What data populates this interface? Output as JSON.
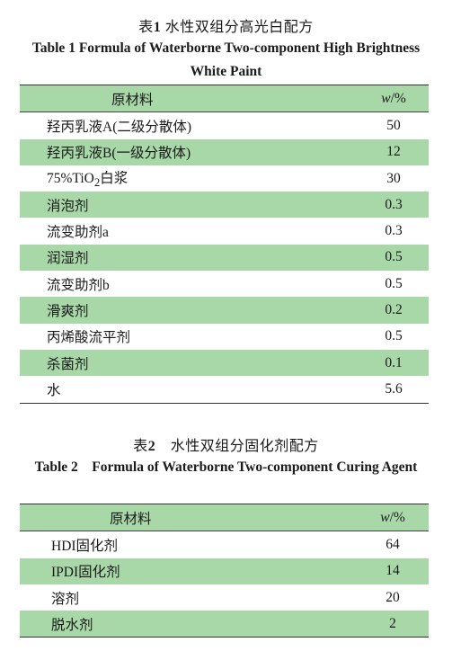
{
  "table1": {
    "caption_cn_prefix": "表",
    "caption_cn_num": "1",
    "caption_cn_text": " 水性双组分高光白配方",
    "caption_en": "Table 1 Formula of Waterborne Two-component High Brightness White Paint",
    "header": {
      "material": "原材料",
      "w_symbol": "w",
      "w_unit": "/%"
    },
    "rows": [
      {
        "name": "羟丙乳液A(二级分散体)",
        "value": "50"
      },
      {
        "name": "羟丙乳液B(一级分散体)",
        "value": "12"
      },
      {
        "name_pre": "75%TiO",
        "name_sub": "2",
        "name_post": "白浆",
        "value": "30"
      },
      {
        "name": "消泡剂",
        "value": "0.3"
      },
      {
        "name": "流变助剂a",
        "value": "0.3"
      },
      {
        "name": "润湿剂",
        "value": "0.5"
      },
      {
        "name": "流变助剂b",
        "value": "0.5"
      },
      {
        "name": "滑爽剂",
        "value": "0.2"
      },
      {
        "name": "丙烯酸流平剂",
        "value": "0.5"
      },
      {
        "name": "杀菌剂",
        "value": "0.1"
      },
      {
        "name": "水",
        "value": "5.6"
      }
    ]
  },
  "table2": {
    "caption_cn_prefix": "表",
    "caption_cn_num": "2",
    "caption_cn_text": "　水性双组分固化剂配方",
    "caption_en": "Table 2　Formula of Waterborne Two-component Curing Agent",
    "header": {
      "material": "原材料",
      "w_symbol": "w",
      "w_unit": "/%"
    },
    "rows": [
      {
        "name": "HDI固化剂",
        "value": "64"
      },
      {
        "name": "IPDI固化剂",
        "value": "14"
      },
      {
        "name": "溶剂",
        "value": "20"
      },
      {
        "name": "脱水剂",
        "value": "2"
      }
    ]
  },
  "colors": {
    "row_highlight": "#a8d7a8",
    "rule": "#333333"
  }
}
